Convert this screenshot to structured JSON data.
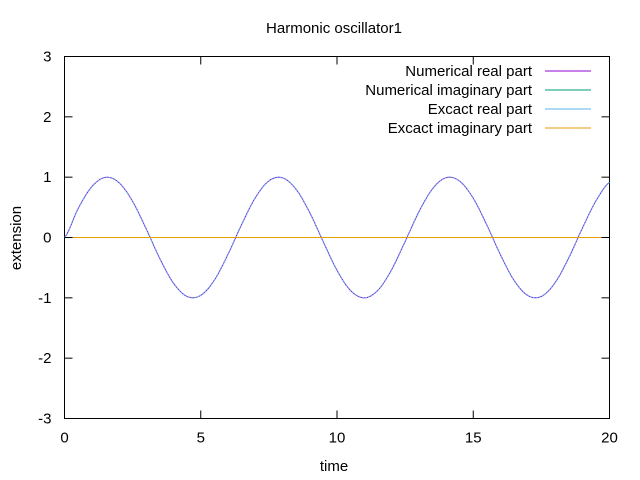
{
  "chart_data": {
    "type": "line",
    "title": "Harmonic oscillator1",
    "xlabel": "time",
    "ylabel": "extension",
    "xlim": [
      0,
      20
    ],
    "ylim": [
      -3,
      3
    ],
    "x_ticks": [
      "0",
      "5",
      "10",
      "15",
      "20"
    ],
    "y_ticks": [
      "3",
      "2",
      "1",
      "0",
      "-1",
      "-2",
      "-3"
    ],
    "x_tick_values": [
      0,
      5,
      10,
      15,
      20
    ],
    "y_tick_values": [
      3,
      2,
      1,
      0,
      -1,
      -2,
      -3
    ],
    "grid": false,
    "legend_position": "top-right",
    "x": [
      0,
      0.5,
      1,
      1.5,
      2,
      2.5,
      3,
      3.5,
      4,
      4.5,
      5,
      5.5,
      6,
      6.5,
      7,
      7.5,
      8,
      8.5,
      9,
      9.5,
      10,
      10.5,
      11,
      11.5,
      12,
      12.5,
      13,
      13.5,
      14,
      14.5,
      15,
      15.5,
      16,
      16.5,
      17,
      17.5,
      18,
      18.5,
      19,
      19.5,
      20
    ],
    "series": [
      {
        "name": "Numerical real part",
        "color": "#9400d3",
        "values": [
          0,
          0.479,
          0.841,
          0.997,
          0.909,
          0.598,
          0.141,
          -0.351,
          -0.757,
          -0.978,
          -0.959,
          -0.706,
          -0.279,
          0.215,
          0.657,
          0.938,
          0.989,
          0.798,
          0.412,
          -0.075,
          -0.544,
          -0.88,
          -1.0,
          -0.875,
          -0.537,
          -0.066,
          0.42,
          0.804,
          0.991,
          0.935,
          0.65,
          0.206,
          -0.288,
          -0.712,
          -0.961,
          -0.976,
          -0.751,
          -0.342,
          0.15,
          0.604,
          0.913
        ]
      },
      {
        "name": "Numerical imaginary part",
        "color": "#009e73",
        "values": [
          0,
          0,
          0,
          0,
          0,
          0,
          0,
          0,
          0,
          0,
          0,
          0,
          0,
          0,
          0,
          0,
          0,
          0,
          0,
          0,
          0,
          0,
          0,
          0,
          0,
          0,
          0,
          0,
          0,
          0,
          0,
          0,
          0,
          0,
          0,
          0,
          0,
          0,
          0,
          0,
          0
        ]
      },
      {
        "name": "Excact real part",
        "color": "#56b4e9",
        "values": [
          0,
          0.479,
          0.841,
          0.997,
          0.909,
          0.598,
          0.141,
          -0.351,
          -0.757,
          -0.978,
          -0.959,
          -0.706,
          -0.279,
          0.215,
          0.657,
          0.938,
          0.989,
          0.798,
          0.412,
          -0.075,
          -0.544,
          -0.88,
          -1.0,
          -0.875,
          -0.537,
          -0.066,
          0.42,
          0.804,
          0.991,
          0.935,
          0.65,
          0.206,
          -0.288,
          -0.712,
          -0.961,
          -0.976,
          -0.751,
          -0.342,
          0.15,
          0.604,
          0.913
        ]
      },
      {
        "name": "Excact imaginary part",
        "color": "#e69f00",
        "values": [
          0,
          0,
          0,
          0,
          0,
          0,
          0,
          0,
          0,
          0,
          0,
          0,
          0,
          0,
          0,
          0,
          0,
          0,
          0,
          0,
          0,
          0,
          0,
          0,
          0,
          0,
          0,
          0,
          0,
          0,
          0,
          0,
          0,
          0,
          0,
          0,
          0,
          0,
          0,
          0,
          0
        ]
      }
    ]
  }
}
